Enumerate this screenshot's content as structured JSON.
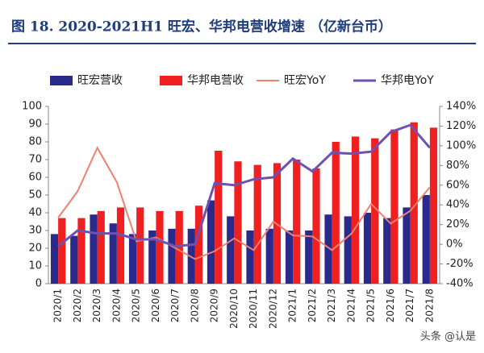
{
  "chart_data": {
    "type": "bar",
    "title": "图 18. 2020-2021H1 旺宏、华邦电营收增速 （亿新台币）",
    "watermark": "头条 @认是",
    "categories": [
      "2020/1",
      "2020/2",
      "2020/3",
      "2020/4",
      "2020/5",
      "2020/6",
      "2020/7",
      "2020/8",
      "2020/9",
      "2020/10",
      "2020/11",
      "2020/12",
      "2021/1",
      "2021/2",
      "2021/3",
      "2021/4",
      "2021/5",
      "2021/6",
      "2021/7",
      "2021/8"
    ],
    "series": [
      {
        "name": "旺宏营收",
        "type": "bar",
        "color": "#2a2a8c",
        "values": [
          28,
          27,
          39,
          34,
          28,
          30,
          31,
          31,
          47,
          38,
          30,
          31,
          30,
          30,
          39,
          38,
          40,
          37,
          43,
          50
        ]
      },
      {
        "name": "华邦电营收",
        "type": "bar",
        "color": "#f02020",
        "values": [
          37,
          37,
          41,
          43,
          43,
          41,
          41,
          44,
          75,
          69,
          67,
          68,
          70,
          65,
          80,
          83,
          82,
          87,
          91,
          88
        ]
      },
      {
        "name": "旺宏YoY",
        "type": "line",
        "axis": "y2",
        "color": "#f08070",
        "values": [
          27,
          54,
          98,
          63,
          3,
          7,
          -4,
          -15,
          -7,
          6,
          -6,
          23,
          9,
          8,
          -6,
          11,
          41,
          21,
          34,
          58
        ]
      },
      {
        "name": "华邦电YoY",
        "type": "line",
        "axis": "y2",
        "color": "#7050b0",
        "values": [
          -2,
          14,
          11,
          11,
          5,
          5,
          -2,
          0,
          62,
          60,
          66,
          68,
          87,
          74,
          93,
          92,
          94,
          114,
          121,
          98
        ]
      }
    ],
    "ylim": [
      0,
      100
    ],
    "yticks": [
      0,
      10,
      20,
      30,
      40,
      50,
      60,
      70,
      80,
      90,
      100
    ],
    "y2lim": [
      -40,
      140
    ],
    "y2ticks": [
      {
        "value": -40,
        "label": "-40%"
      },
      {
        "value": -20,
        "label": "-20%"
      },
      {
        "value": 0,
        "label": "0%"
      },
      {
        "value": 20,
        "label": "20%"
      },
      {
        "value": 40,
        "label": "40%"
      },
      {
        "value": 60,
        "label": "60%"
      },
      {
        "value": 80,
        "label": "80%"
      },
      {
        "value": 100,
        "label": "100%"
      },
      {
        "value": 120,
        "label": "120%"
      },
      {
        "value": 140,
        "label": "140%"
      }
    ],
    "grid": false
  }
}
